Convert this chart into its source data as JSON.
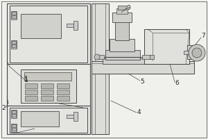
{
  "bg_color": "#f0f0ec",
  "line_color": "#444444",
  "fill_cabinet": "#e8e8e4",
  "fill_panel": "#dcdcda",
  "fill_screen": "#d0d0cc",
  "fill_dark": "#b8b8b4",
  "label_fontsize": 6.5
}
